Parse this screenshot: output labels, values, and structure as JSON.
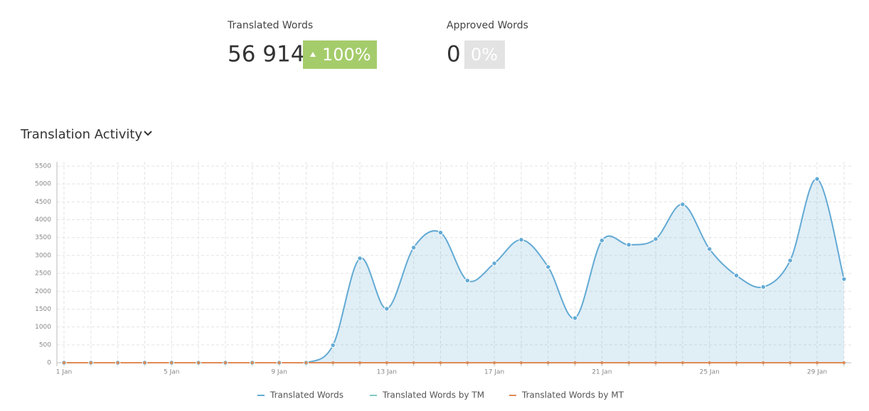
{
  "stats": [
    {
      "label": "Translated Words",
      "value": "56 914",
      "change": "100%"
    },
    {
      "label": "Approved Words",
      "value": "0",
      "change": "0%"
    }
  ],
  "chart_data": {
    "type": "line",
    "title": "Translation Activity",
    "categories": [
      "1 Jan",
      null,
      null,
      null,
      "5 Jan",
      null,
      null,
      null,
      "9 Jan",
      null,
      null,
      null,
      "13 Jan",
      null,
      null,
      null,
      "17 Jan",
      null,
      null,
      null,
      "21 Jan",
      null,
      null,
      null,
      "25 Jan",
      null,
      null,
      null,
      "29 Jan",
      null
    ],
    "series": [
      {
        "name": "Translated Words",
        "color": "#62aad4",
        "values": [
          0,
          0,
          0,
          0,
          0,
          0,
          0,
          0,
          0,
          0,
          490,
          2920,
          1510,
          3220,
          3640,
          2300,
          2780,
          3440,
          2680,
          1250,
          3420,
          3300,
          3460,
          4430,
          3180,
          2440,
          2120,
          2860,
          5140,
          2340
        ]
      },
      {
        "name": "Translated Words by TM",
        "color": "#7fcac0",
        "values": [
          0,
          0,
          0,
          0,
          0,
          0,
          0,
          0,
          0,
          0,
          0,
          0,
          0,
          0,
          0,
          0,
          0,
          0,
          0,
          0,
          0,
          0,
          0,
          0,
          0,
          0,
          0,
          0,
          0,
          0
        ]
      },
      {
        "name": "Translated Words by MT",
        "color": "#e08a55",
        "values": [
          0,
          0,
          0,
          0,
          0,
          0,
          0,
          0,
          0,
          0,
          0,
          0,
          0,
          0,
          0,
          0,
          0,
          0,
          0,
          0,
          0,
          0,
          0,
          0,
          0,
          0,
          0,
          0,
          0,
          0
        ]
      }
    ],
    "ylim": [
      0,
      5500
    ],
    "yticks": [
      0,
      500,
      1000,
      1500,
      2000,
      2500,
      3000,
      3500,
      4000,
      4500,
      5000,
      5500
    ],
    "grid": true,
    "legend": "bottom"
  }
}
